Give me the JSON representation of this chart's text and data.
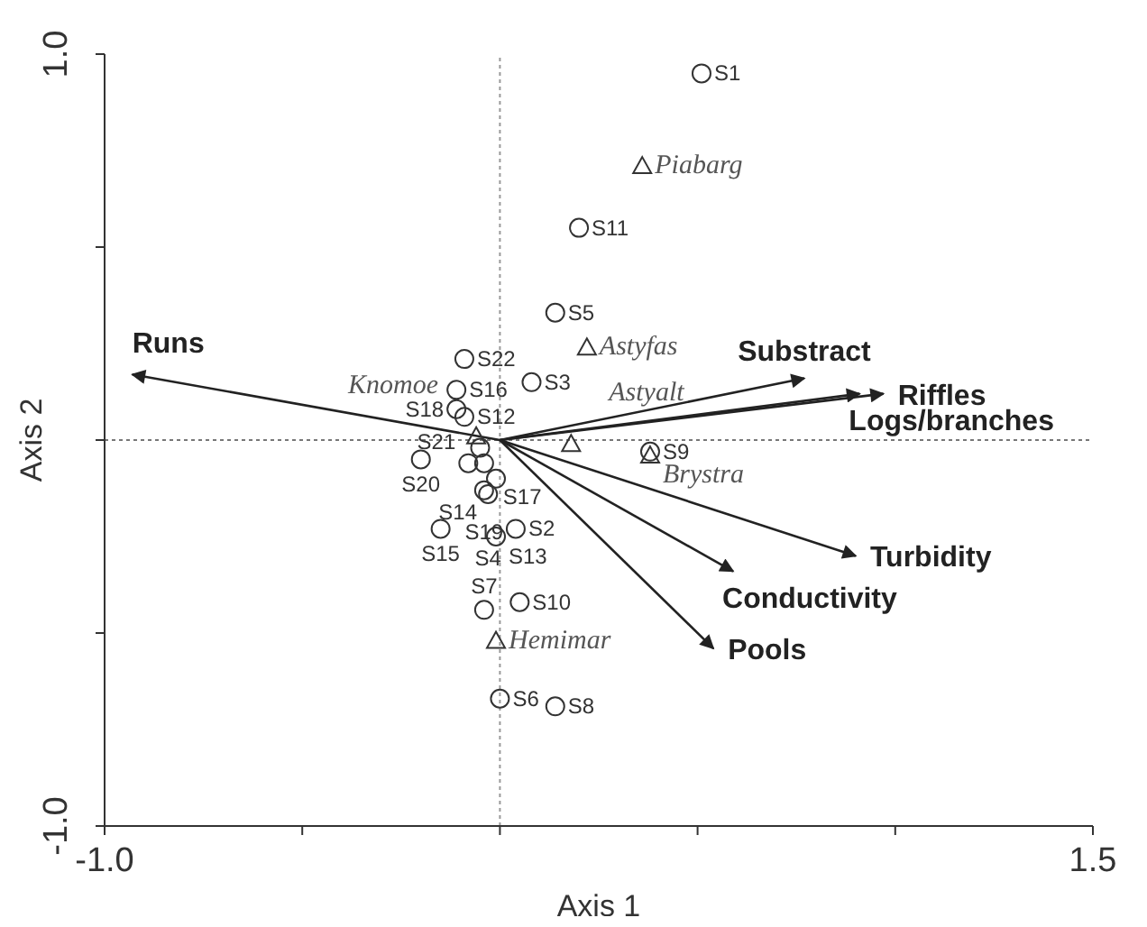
{
  "chart_data": {
    "type": "scatter",
    "xlabel": "Axis 1",
    "ylabel": "Axis 2",
    "xlim": [
      -1.0,
      1.5
    ],
    "xticks": [
      {
        "value": -1.0,
        "label": "-1.0"
      },
      {
        "value": -0.5,
        "label": null
      },
      {
        "value": 0,
        "label": null
      },
      {
        "value": 0.5,
        "label": null
      },
      {
        "value": 1.0,
        "label": null
      },
      {
        "value": 1.5,
        "label": "1.5"
      }
    ],
    "ylim": [
      -1.0,
      1.0
    ],
    "yticks": [
      {
        "value": -1.0,
        "label": "-1.0"
      },
      {
        "value": -0.5,
        "label": null
      },
      {
        "value": 0,
        "label": null
      },
      {
        "value": 0.5,
        "label": null
      },
      {
        "value": 1.0,
        "label": "1.0"
      }
    ],
    "grid": false,
    "legend": false,
    "ref_lines": [
      {
        "axis": "x",
        "value": 0,
        "label": null,
        "color": "#999999",
        "line_style": "dotted"
      },
      {
        "axis": "y",
        "value": 0,
        "label": null,
        "color": "#777777",
        "line_style": "dotted"
      }
    ],
    "series": [
      {
        "marker": "circle",
        "color": "#333333",
        "x": [
          0.51,
          0.2,
          0.14,
          0.08,
          -0.09,
          -0.11,
          -0.11,
          -0.09,
          -0.05,
          -0.2,
          -0.08,
          -0.04,
          -0.01,
          -0.03,
          -0.04,
          -0.15,
          -0.01,
          0.04,
          -0.04,
          0.05,
          0.0,
          0.14,
          0.38
        ],
        "values": [
          0.95,
          0.55,
          0.33,
          0.15,
          0.21,
          0.13,
          0.08,
          0.06,
          -0.02,
          -0.05,
          -0.06,
          -0.06,
          -0.1,
          -0.14,
          -0.13,
          -0.23,
          -0.25,
          -0.23,
          -0.44,
          -0.42,
          -0.67,
          -0.69,
          -0.03
        ]
      },
      {
        "marker": "triangle",
        "color": "#333333",
        "x": [
          0.36,
          0.22,
          -0.06,
          0.18,
          0.38,
          -0.01
        ],
        "values": [
          0.71,
          0.24,
          0.01,
          -0.01,
          -0.04,
          -0.52
        ]
      },
      {
        "type": "line",
        "name": "Runs",
        "color": "#222222",
        "x": [
          0,
          -0.93
        ],
        "values": [
          0,
          0.17
        ]
      },
      {
        "type": "line",
        "name": "Substract",
        "color": "#222222",
        "x": [
          0,
          0.77
        ],
        "values": [
          0,
          0.16
        ]
      },
      {
        "type": "line",
        "name": "Riffles",
        "color": "#222222",
        "x": [
          0,
          0.97
        ],
        "values": [
          0,
          0.12
        ]
      },
      {
        "type": "line",
        "name": "Logs/branches",
        "color": "#222222",
        "x": [
          0,
          0.91
        ],
        "values": [
          0,
          0.12
        ]
      },
      {
        "type": "line",
        "name": "Turbidity",
        "color": "#222222",
        "x": [
          0,
          0.9
        ],
        "values": [
          0,
          -0.3
        ]
      },
      {
        "type": "line",
        "name": "Conductivity",
        "color": "#222222",
        "x": [
          0,
          0.59
        ],
        "values": [
          0,
          -0.34
        ]
      },
      {
        "type": "line",
        "name": "Pools",
        "color": "#222222",
        "x": [
          0,
          0.54
        ],
        "values": [
          0,
          -0.54
        ]
      }
    ],
    "annotations": [
      {
        "text": "S1",
        "x": 0.51,
        "y": 0.95
      },
      {
        "text": "S11",
        "x": 0.2,
        "y": 0.55
      },
      {
        "text": "S5",
        "x": 0.14,
        "y": 0.33
      },
      {
        "text": "S3",
        "x": 0.08,
        "y": 0.15
      },
      {
        "text": "S22",
        "x": -0.09,
        "y": 0.21
      },
      {
        "text": "S16",
        "x": -0.11,
        "y": 0.13
      },
      {
        "text": "S18",
        "x": -0.11,
        "y": 0.08
      },
      {
        "text": "S12",
        "x": -0.09,
        "y": 0.06
      },
      {
        "text": "S20",
        "x": -0.2,
        "y": -0.05
      },
      {
        "text": "S21",
        "x": -0.08,
        "y": -0.06
      },
      {
        "text": "S17",
        "x": -0.04,
        "y": -0.06
      },
      {
        "text": "S14",
        "x": -0.01,
        "y": -0.1
      },
      {
        "text": "S4",
        "x": -0.03,
        "y": -0.14
      },
      {
        "text": "S19",
        "x": -0.04,
        "y": -0.13
      },
      {
        "text": "S15",
        "x": -0.15,
        "y": -0.23
      },
      {
        "text": "S13",
        "x": -0.01,
        "y": -0.25
      },
      {
        "text": "S2",
        "x": 0.04,
        "y": -0.23
      },
      {
        "text": "S7",
        "x": -0.04,
        "y": -0.44
      },
      {
        "text": "S10",
        "x": 0.05,
        "y": -0.42
      },
      {
        "text": "S6",
        "x": 0.0,
        "y": -0.67
      },
      {
        "text": "S8",
        "x": 0.14,
        "y": -0.69
      },
      {
        "text": "S9",
        "x": 0.38,
        "y": -0.03
      },
      {
        "text": "Piabarg",
        "x": 0.36,
        "y": 0.71
      },
      {
        "text": "Astyfas",
        "x": 0.22,
        "y": 0.24
      },
      {
        "text": "Knomoe",
        "x": -0.06,
        "y": 0.01
      },
      {
        "text": "Astyalt",
        "x": 0.18,
        "y": -0.01
      },
      {
        "text": "Brystra",
        "x": 0.38,
        "y": -0.04
      },
      {
        "text": "Hemimar",
        "x": -0.01,
        "y": -0.52
      }
    ]
  }
}
